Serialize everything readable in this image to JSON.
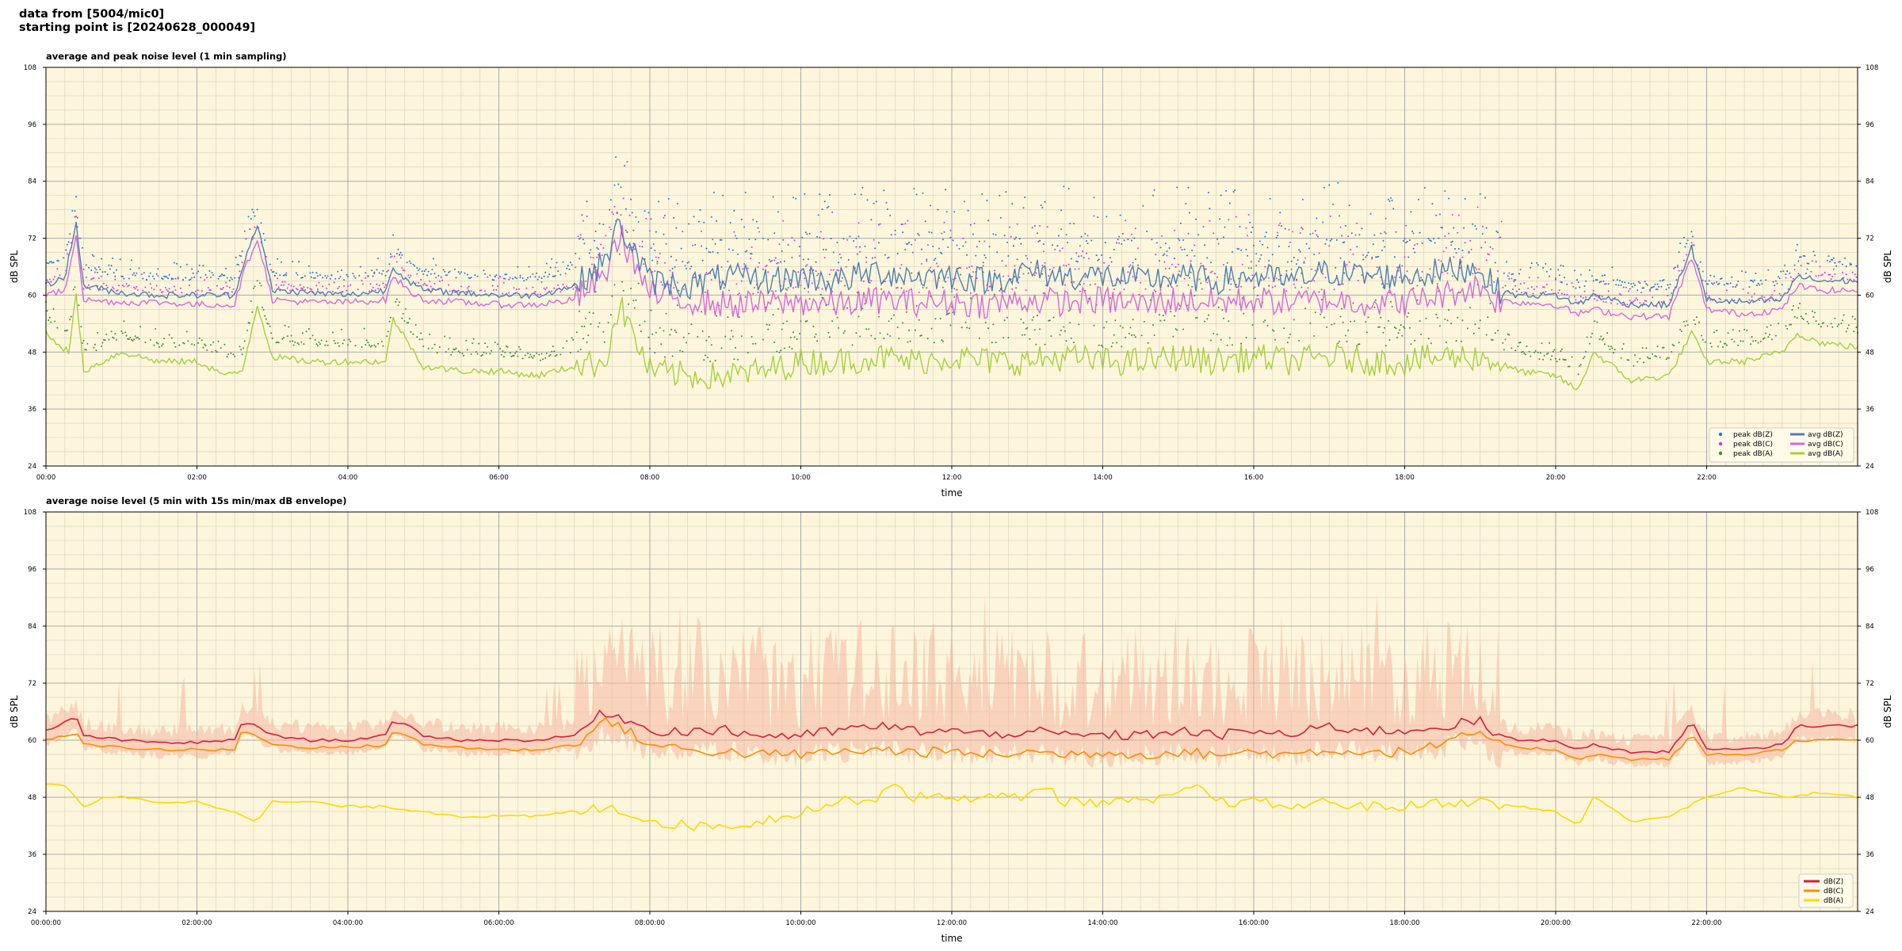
{
  "header": {
    "line1": "data from [5004/mic0]",
    "line2": "starting point is [20240628_000049]"
  },
  "colors": {
    "background": "#fdf6dc",
    "grid_major": "#aaaaaa",
    "grid_minor": "#dcd6c0",
    "peak_z": "#1f77d4",
    "peak_c": "#e033e0",
    "peak_a": "#3a8c3a",
    "avg_z": "#4a7fb5",
    "avg_c": "#d966d9",
    "avg_a": "#a4d13a",
    "db_z": "#d61e3c",
    "db_c": "#ff8c00",
    "db_a": "#ffd700",
    "envelope": "#f5b6a0"
  },
  "chart_data": [
    {
      "type": "line",
      "title": "average and peak noise level (1 min sampling)",
      "xlabel": "time",
      "ylabel": "dB SPL",
      "ylim": [
        24,
        108
      ],
      "xlim_hours": [
        0,
        24
      ],
      "yticks": [
        "24",
        "36",
        "48",
        "60",
        "72",
        "84",
        "96",
        "108"
      ],
      "xticks": [
        "00:00",
        "02:00",
        "04:00",
        "06:00",
        "08:00",
        "10:00",
        "12:00",
        "14:00",
        "16:00",
        "18:00",
        "20:00",
        "22:00"
      ],
      "grid": true,
      "legend_position": "lower-right",
      "legend": [
        {
          "label": "peak dB(Z)",
          "kind": "dot",
          "color_key": "peak_z"
        },
        {
          "label": "avg dB(Z)",
          "kind": "line",
          "color_key": "avg_z"
        },
        {
          "label": "peak dB(C)",
          "kind": "dot",
          "color_key": "peak_c"
        },
        {
          "label": "avg dB(C)",
          "kind": "line",
          "color_key": "avg_c"
        },
        {
          "label": "peak dB(A)",
          "kind": "dot",
          "color_key": "peak_a"
        },
        {
          "label": "avg dB(A)",
          "kind": "line",
          "color_key": "avg_a"
        }
      ],
      "series": [
        {
          "name": "avg dB(Z)",
          "color_key": "avg_z",
          "x": [
            0,
            0.25,
            0.4,
            0.5,
            1,
            1.5,
            2,
            2.5,
            2.6,
            2.8,
            3,
            3.5,
            4,
            4.5,
            4.6,
            4.8,
            5,
            5.5,
            6,
            6.5,
            7,
            7.4,
            7.6,
            8,
            8.5,
            9,
            9.5,
            10,
            10.5,
            11,
            11.5,
            12,
            12.5,
            13,
            13.5,
            14,
            14.5,
            15,
            15.5,
            16,
            16.5,
            17,
            17.5,
            18,
            18.5,
            19,
            19.2,
            19.5,
            20,
            20.3,
            20.5,
            21,
            21.5,
            21.8,
            22,
            22.5,
            23,
            23.2,
            23.5,
            24
          ],
          "y": [
            62,
            64,
            75,
            62,
            60.5,
            60,
            60,
            60,
            66,
            75,
            61,
            60.5,
            60,
            61,
            66,
            63,
            61,
            60.5,
            60,
            60,
            62,
            67,
            75,
            63,
            62,
            64,
            63,
            64,
            63,
            65,
            64,
            64,
            63,
            65,
            64,
            64,
            63,
            64,
            63,
            64,
            63,
            65,
            64,
            64,
            65,
            66,
            61,
            60,
            60,
            58,
            60,
            58,
            58,
            70,
            59,
            58.5,
            59,
            64,
            63,
            63
          ]
        },
        {
          "name": "avg dB(C)",
          "color_key": "avg_c",
          "x": [
            0,
            0.25,
            0.4,
            0.5,
            1,
            1.5,
            2,
            2.5,
            2.6,
            2.8,
            3,
            3.5,
            4,
            4.5,
            4.6,
            4.8,
            5,
            5.5,
            6,
            6.5,
            7,
            7.4,
            7.6,
            8,
            8.5,
            9,
            9.5,
            10,
            10.5,
            11,
            11.5,
            12,
            12.5,
            13,
            13.5,
            14,
            14.5,
            15,
            15.5,
            16,
            16.5,
            17,
            17.5,
            18,
            18.5,
            19,
            19.2,
            19.5,
            20,
            20.3,
            20.5,
            21,
            21.5,
            21.8,
            22,
            22.5,
            23,
            23.2,
            23.5,
            24
          ],
          "y": [
            60,
            61,
            73,
            59,
            58.5,
            58.5,
            58,
            58,
            64,
            72,
            59,
            58.5,
            58.5,
            59,
            64,
            61,
            59,
            58.5,
            58,
            58,
            59,
            64,
            73,
            60,
            59,
            58,
            58,
            58.5,
            58,
            59,
            58.5,
            58.5,
            58,
            59,
            58.5,
            59,
            58,
            59,
            58.5,
            59,
            58.5,
            59,
            58.5,
            58.5,
            60,
            62,
            59,
            58.5,
            58,
            56,
            57,
            55.5,
            55.5,
            68,
            57,
            56,
            57,
            62,
            61,
            61
          ]
        },
        {
          "name": "avg dB(A)",
          "color_key": "avg_a",
          "x": [
            0,
            0.3,
            0.4,
            0.5,
            1,
            1.5,
            2,
            2.4,
            2.6,
            2.8,
            3,
            3.5,
            4,
            4.5,
            4.6,
            5,
            5.5,
            6,
            6.5,
            7,
            7.4,
            7.6,
            8,
            8.5,
            9,
            9.5,
            10,
            10.5,
            11,
            11.5,
            12,
            12.5,
            13,
            13.5,
            14,
            14.5,
            15,
            15.5,
            16,
            16.5,
            17,
            17.5,
            18,
            18.5,
            19,
            19.2,
            19.5,
            20,
            20.3,
            20.5,
            21,
            21.5,
            21.8,
            22,
            22.5,
            23,
            23.2,
            23.5,
            24
          ],
          "y": [
            52,
            48,
            60,
            44,
            48,
            46,
            46,
            43,
            44,
            58,
            47,
            46,
            46,
            46,
            55,
            45,
            44,
            44,
            43,
            45,
            46,
            58,
            44,
            43,
            43,
            44,
            46,
            46,
            47,
            46,
            47,
            46,
            46,
            47,
            46,
            46,
            47,
            46,
            47,
            46,
            47,
            46,
            46,
            47,
            47,
            46,
            44,
            43,
            40,
            48,
            42,
            43,
            52,
            46,
            46,
            48,
            52,
            50,
            49
          ]
        }
      ]
    },
    {
      "type": "line",
      "title": "average noise level (5 min with 15s min/max dB envelope)",
      "xlabel": "time",
      "ylabel": "dB SPL",
      "ylim": [
        24,
        108
      ],
      "xlim_hours": [
        0,
        24
      ],
      "yticks": [
        "24",
        "36",
        "48",
        "60",
        "72",
        "84",
        "96",
        "108"
      ],
      "xticks": [
        "00:00:00",
        "02:00:00",
        "04:00:00",
        "06:00:00",
        "08:00:00",
        "10:00:00",
        "12:00:00",
        "14:00:00",
        "16:00:00",
        "18:00:00",
        "20:00:00",
        "22:00:00"
      ],
      "grid": true,
      "legend_position": "lower-right",
      "legend": [
        {
          "label": "dB(Z)",
          "kind": "line",
          "color_key": "db_z"
        },
        {
          "label": "dB(C)",
          "kind": "line",
          "color_key": "db_c"
        },
        {
          "label": "dB(A)",
          "kind": "line",
          "color_key": "db_a"
        }
      ],
      "series": [
        {
          "name": "dB(Z)",
          "color_key": "db_z",
          "x": [
            0,
            0.3,
            0.4,
            0.5,
            1,
            1.5,
            2,
            2.5,
            2.6,
            2.8,
            3,
            3.5,
            4,
            4.5,
            4.6,
            4.8,
            5,
            5.5,
            6,
            6.5,
            7,
            7.4,
            7.6,
            8,
            8.5,
            9,
            9.5,
            10,
            10.5,
            11,
            11.5,
            12,
            12.5,
            13,
            13.5,
            14,
            14.5,
            15,
            15.5,
            16,
            16.5,
            17,
            17.5,
            18,
            18.5,
            19,
            19.2,
            19.5,
            20,
            20.3,
            20.5,
            21,
            21.5,
            21.8,
            22,
            22.5,
            23,
            23.2,
            23.5,
            24
          ],
          "y": [
            62,
            64,
            65,
            61,
            60,
            59.5,
            59.5,
            60,
            64,
            63,
            61,
            60,
            60,
            61,
            64,
            63,
            61,
            60,
            60,
            60,
            61,
            66,
            65,
            62,
            62,
            62,
            61,
            61,
            62,
            63,
            62,
            62,
            61,
            62,
            61,
            61,
            61,
            62,
            61,
            62,
            61,
            63,
            62,
            62,
            63,
            64,
            61,
            60,
            60,
            58,
            59,
            57.5,
            57.5,
            64,
            58,
            58,
            59,
            63,
            63,
            63
          ]
        },
        {
          "name": "dB(C)",
          "color_key": "db_c",
          "x": [
            0,
            0.3,
            0.4,
            0.5,
            1,
            1.5,
            2,
            2.5,
            2.6,
            2.8,
            3,
            3.5,
            4,
            4.5,
            4.6,
            4.8,
            5,
            5.5,
            6,
            6.5,
            7,
            7.4,
            7.6,
            8,
            8.5,
            9,
            9.5,
            10,
            10.5,
            11,
            11.5,
            12,
            12.5,
            13,
            13.5,
            14,
            14.5,
            15,
            15.5,
            16,
            16.5,
            17,
            17.5,
            18,
            18.5,
            19,
            19.2,
            19.5,
            20,
            20.3,
            20.5,
            21,
            21.5,
            21.8,
            22,
            22.5,
            23,
            23.2,
            23.5,
            24
          ],
          "y": [
            60,
            61,
            62,
            59,
            58.5,
            58,
            58,
            58,
            62,
            61,
            59,
            58.5,
            58.5,
            59,
            62,
            61,
            59,
            58.5,
            58,
            58,
            59,
            64,
            63,
            59,
            58,
            57.5,
            57,
            57,
            57.5,
            58,
            57.5,
            57.5,
            57,
            57.5,
            57,
            57.5,
            57,
            57.5,
            57,
            57.5,
            57,
            58,
            57.5,
            57.5,
            59,
            62,
            59,
            58.5,
            58,
            56,
            57,
            56,
            56,
            61,
            57,
            57,
            58,
            60,
            60,
            60
          ]
        },
        {
          "name": "dB(A)",
          "color_key": "db_a",
          "x": [
            0,
            0.3,
            0.5,
            0.8,
            1,
            1.5,
            2,
            2.5,
            2.8,
            3,
            3.5,
            4,
            4.5,
            5,
            5.5,
            6,
            6.5,
            7,
            7.5,
            8,
            8.5,
            9,
            9.5,
            10,
            10.5,
            11,
            11.2,
            11.5,
            12,
            12.5,
            13,
            13.2,
            13.5,
            14,
            14.5,
            15,
            15.2,
            15.5,
            16,
            16.5,
            17,
            17.5,
            18,
            18.5,
            19,
            19.5,
            20,
            20.3,
            20.5,
            21,
            21.5,
            22,
            22.5,
            23,
            23.5,
            24
          ],
          "y": [
            51,
            50,
            46,
            48,
            48,
            47,
            47,
            45,
            43,
            47,
            47,
            46,
            46,
            45,
            44,
            44,
            44,
            45,
            46,
            43,
            42,
            42,
            43,
            45,
            47,
            48,
            51,
            48,
            48,
            48,
            48,
            51,
            47,
            47,
            47,
            48,
            51,
            47,
            47,
            46,
            47,
            46,
            46,
            47,
            47,
            46,
            45,
            42,
            48,
            43,
            44,
            48,
            50,
            48,
            49,
            48
          ]
        }
      ]
    }
  ]
}
